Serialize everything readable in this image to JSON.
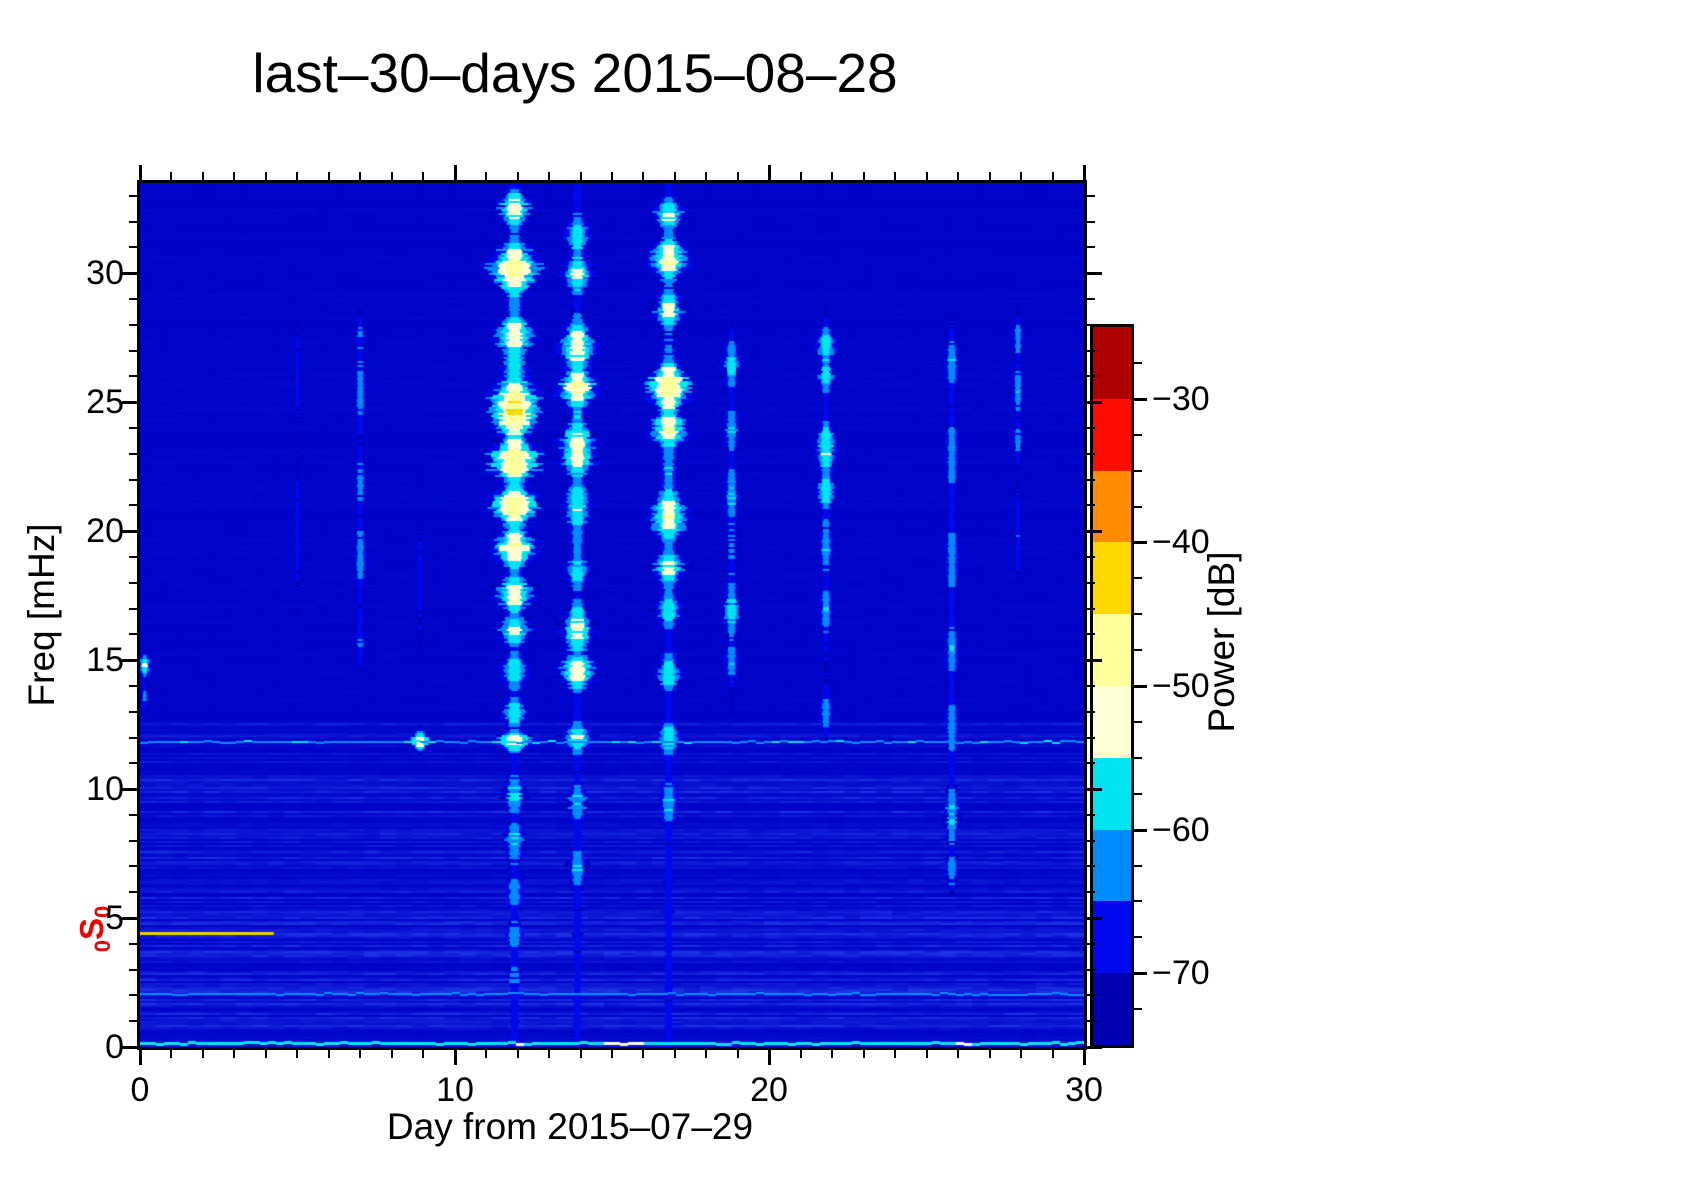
{
  "title": "last–30–days 2015–08–28",
  "chart_data": {
    "type": "heatmap",
    "title": "last–30–days 2015–08–28",
    "xlabel": "Day from 2015–07–29",
    "ylabel": "Freq [mHz]",
    "xlim": [
      0,
      30
    ],
    "ylim": [
      0,
      33.5
    ],
    "x_major_ticks": [
      0,
      10,
      20,
      30
    ],
    "x_minor_step": 1,
    "y_major_ticks": [
      0,
      5,
      10,
      15,
      20,
      25,
      30
    ],
    "y_minor_step": 1,
    "grid": false,
    "colorbar": {
      "label": "Power [dB]",
      "lim": [
        -75,
        -25
      ],
      "major_ticks": [
        -30,
        -40,
        -50,
        -60,
        -70
      ],
      "major_tick_labels": [
        "−30",
        "−40",
        "−50",
        "−60",
        "−70"
      ],
      "minor_step": 2.5,
      "segments": [
        {
          "to": -70,
          "color": "#0000B2"
        },
        {
          "to": -65,
          "color": "#0009EE"
        },
        {
          "to": -60,
          "color": "#008CFF"
        },
        {
          "to": -55,
          "color": "#00E4F2"
        },
        {
          "to": -50,
          "color": "#FFFFD4"
        },
        {
          "to": -45,
          "color": "#FFFF9C"
        },
        {
          "to": -40,
          "color": "#FFD800"
        },
        {
          "to": -35,
          "color": "#FF8C00"
        },
        {
          "to": -30,
          "color": "#FD0D00"
        },
        {
          "to": -25,
          "color": "#AE0000"
        }
      ]
    },
    "background": {
      "color": "#0103C9",
      "stripe_color": "#3A66FF",
      "noise_band_max_freq": 12.6,
      "base_power_db": -73
    },
    "events": [
      {
        "day": 0.15,
        "width": 6,
        "blobs": [
          {
            "freq": 14.8,
            "sigma": 0.5,
            "peak": -55
          },
          {
            "freq": 13.6,
            "sigma": 0.6,
            "peak": -64
          }
        ]
      },
      {
        "day": 5.0,
        "width": 8,
        "blobs": [
          {
            "freq": 26.0,
            "sigma": 2.0,
            "peak": -67
          },
          {
            "freq": 20.0,
            "sigma": 3.0,
            "peak": -67.5
          }
        ]
      },
      {
        "day": 7.0,
        "width": 9,
        "blobs": [
          {
            "freq": 25.5,
            "sigma": 2.0,
            "peak": -63
          },
          {
            "freq": 27.5,
            "sigma": 1.0,
            "peak": -64
          },
          {
            "freq": 22.0,
            "sigma": 1.5,
            "peak": -63.5
          },
          {
            "freq": 19.0,
            "sigma": 2.0,
            "peak": -62.5
          },
          {
            "freq": 16.0,
            "sigma": 1.5,
            "peak": -65
          }
        ]
      },
      {
        "day": 8.9,
        "width": 8,
        "blobs": [
          {
            "freq": 11.9,
            "sigma": 0.4,
            "peak": -51
          },
          {
            "freq": 18.0,
            "sigma": 2.5,
            "peak": -68
          }
        ]
      },
      {
        "day": 11.9,
        "width": 14,
        "floor": -67,
        "blobs": [
          {
            "freq": 32.5,
            "sigma": 1.0,
            "peak": -53
          },
          {
            "freq": 30.2,
            "sigma": 1.3,
            "peak": -47
          },
          {
            "freq": 27.6,
            "sigma": 1.1,
            "peak": -51
          },
          {
            "freq": 24.8,
            "sigma": 1.6,
            "peak": -45
          },
          {
            "freq": 22.8,
            "sigma": 1.2,
            "peak": -46
          },
          {
            "freq": 21.0,
            "sigma": 1.1,
            "peak": -47
          },
          {
            "freq": 19.4,
            "sigma": 1.0,
            "peak": -49
          },
          {
            "freq": 17.6,
            "sigma": 1.0,
            "peak": -52
          },
          {
            "freq": 16.2,
            "sigma": 0.8,
            "peak": -54
          },
          {
            "freq": 14.6,
            "sigma": 0.9,
            "peak": -56
          },
          {
            "freq": 13.0,
            "sigma": 0.8,
            "peak": -58
          },
          {
            "freq": 11.9,
            "sigma": 0.5,
            "peak": -51
          },
          {
            "freq": 9.8,
            "sigma": 1.0,
            "peak": -59
          },
          {
            "freq": 8.0,
            "sigma": 1.2,
            "peak": -60
          },
          {
            "freq": 6.0,
            "sigma": 1.0,
            "peak": -62
          },
          {
            "freq": 4.4,
            "sigma": 0.8,
            "peak": -62
          },
          {
            "freq": 2.8,
            "sigma": 0.8,
            "peak": -64
          },
          {
            "freq": 25.0,
            "sigma": 6.0,
            "peak": -57
          }
        ]
      },
      {
        "day": 13.9,
        "width": 13,
        "floor": -68,
        "blobs": [
          {
            "freq": 31.5,
            "sigma": 1.0,
            "peak": -56
          },
          {
            "freq": 30.0,
            "sigma": 1.0,
            "peak": -54
          },
          {
            "freq": 27.2,
            "sigma": 1.4,
            "peak": -52
          },
          {
            "freq": 25.6,
            "sigma": 1.0,
            "peak": -49
          },
          {
            "freq": 23.2,
            "sigma": 1.5,
            "peak": -51
          },
          {
            "freq": 21.0,
            "sigma": 1.3,
            "peak": -55
          },
          {
            "freq": 18.5,
            "sigma": 1.0,
            "peak": -58
          },
          {
            "freq": 16.2,
            "sigma": 1.4,
            "peak": -54
          },
          {
            "freq": 14.6,
            "sigma": 0.9,
            "peak": -51
          },
          {
            "freq": 12.0,
            "sigma": 0.8,
            "peak": -55
          },
          {
            "freq": 9.5,
            "sigma": 1.0,
            "peak": -60
          },
          {
            "freq": 7.0,
            "sigma": 1.2,
            "peak": -61
          },
          {
            "freq": 23.0,
            "sigma": 7.0,
            "peak": -60
          }
        ]
      },
      {
        "day": 16.8,
        "width": 13,
        "floor": -68,
        "blobs": [
          {
            "freq": 32.3,
            "sigma": 0.8,
            "peak": -54
          },
          {
            "freq": 30.6,
            "sigma": 1.1,
            "peak": -50
          },
          {
            "freq": 28.6,
            "sigma": 1.0,
            "peak": -54
          },
          {
            "freq": 25.6,
            "sigma": 1.3,
            "peak": -47
          },
          {
            "freq": 24.0,
            "sigma": 1.0,
            "peak": -50
          },
          {
            "freq": 20.6,
            "sigma": 1.4,
            "peak": -51
          },
          {
            "freq": 18.6,
            "sigma": 1.0,
            "peak": -54
          },
          {
            "freq": 17.0,
            "sigma": 0.9,
            "peak": -56
          },
          {
            "freq": 14.5,
            "sigma": 1.0,
            "peak": -57
          },
          {
            "freq": 12.0,
            "sigma": 0.9,
            "peak": -57
          },
          {
            "freq": 9.5,
            "sigma": 1.2,
            "peak": -60
          },
          {
            "freq": 23.0,
            "sigma": 8.0,
            "peak": -61
          }
        ]
      },
      {
        "day": 18.8,
        "width": 10,
        "blobs": [
          {
            "freq": 26.5,
            "sigma": 1.3,
            "peak": -59
          },
          {
            "freq": 24.0,
            "sigma": 1.2,
            "peak": -60
          },
          {
            "freq": 21.5,
            "sigma": 1.5,
            "peak": -60
          },
          {
            "freq": 17.0,
            "sigma": 1.5,
            "peak": -59
          },
          {
            "freq": 15.0,
            "sigma": 1.0,
            "peak": -61
          },
          {
            "freq": 20.0,
            "sigma": 6.0,
            "peak": -65
          }
        ]
      },
      {
        "day": 21.8,
        "width": 10,
        "blobs": [
          {
            "freq": 27.2,
            "sigma": 1.0,
            "peak": -57
          },
          {
            "freq": 26.0,
            "sigma": 0.8,
            "peak": -58
          },
          {
            "freq": 23.2,
            "sigma": 1.4,
            "peak": -55
          },
          {
            "freq": 21.6,
            "sigma": 1.0,
            "peak": -57
          },
          {
            "freq": 19.5,
            "sigma": 1.2,
            "peak": -61
          },
          {
            "freq": 17.0,
            "sigma": 1.3,
            "peak": -61
          },
          {
            "freq": 13.0,
            "sigma": 1.0,
            "peak": -61
          },
          {
            "freq": 21.0,
            "sigma": 7.0,
            "peak": -65
          }
        ]
      },
      {
        "day": 25.8,
        "width": 10,
        "blobs": [
          {
            "freq": 26.5,
            "sigma": 1.5,
            "peak": -61
          },
          {
            "freq": 23.0,
            "sigma": 2.0,
            "peak": -62
          },
          {
            "freq": 19.0,
            "sigma": 2.0,
            "peak": -62
          },
          {
            "freq": 15.5,
            "sigma": 1.5,
            "peak": -61
          },
          {
            "freq": 12.5,
            "sigma": 1.5,
            "peak": -62
          },
          {
            "freq": 9.0,
            "sigma": 1.5,
            "peak": -60
          },
          {
            "freq": 7.0,
            "sigma": 1.0,
            "peak": -62
          },
          {
            "freq": 16.0,
            "sigma": 9.0,
            "peak": -66
          }
        ]
      },
      {
        "day": 27.9,
        "width": 8,
        "blobs": [
          {
            "freq": 27.5,
            "sigma": 1.0,
            "peak": -62
          },
          {
            "freq": 25.5,
            "sigma": 1.2,
            "peak": -61
          },
          {
            "freq": 23.5,
            "sigma": 1.0,
            "peak": -63
          },
          {
            "freq": 20.0,
            "sigma": 2.0,
            "peak": -66
          }
        ]
      }
    ],
    "spectral_lines": [
      {
        "freq": 11.82,
        "day_start": 0,
        "day_end": 30,
        "power": -61,
        "jitter": 4,
        "thickness": 2
      },
      {
        "freq": 2.05,
        "day_start": 0,
        "day_end": 30,
        "power": -63.5,
        "jitter": 3,
        "thickness": 2
      },
      {
        "freq": 0.12,
        "day_start": 0,
        "day_end": 30,
        "power": -57,
        "jitter": 3,
        "thickness": 3,
        "blobs": [
          {
            "day": 15.2,
            "sigma": 1.6,
            "power": -51
          },
          {
            "day": 26.0,
            "sigma": 1.2,
            "power": -54
          },
          {
            "day": 12.0,
            "sigma": 0.8,
            "power": -54
          }
        ]
      }
    ],
    "mode_marker": {
      "label_sub_pre": "0",
      "label_main": "S",
      "label_sub_post": "0",
      "label_color": "#ED0000",
      "freq": 4.43,
      "day_start": 0,
      "day_end": 4.25,
      "line_color": "#EFCE00"
    }
  }
}
